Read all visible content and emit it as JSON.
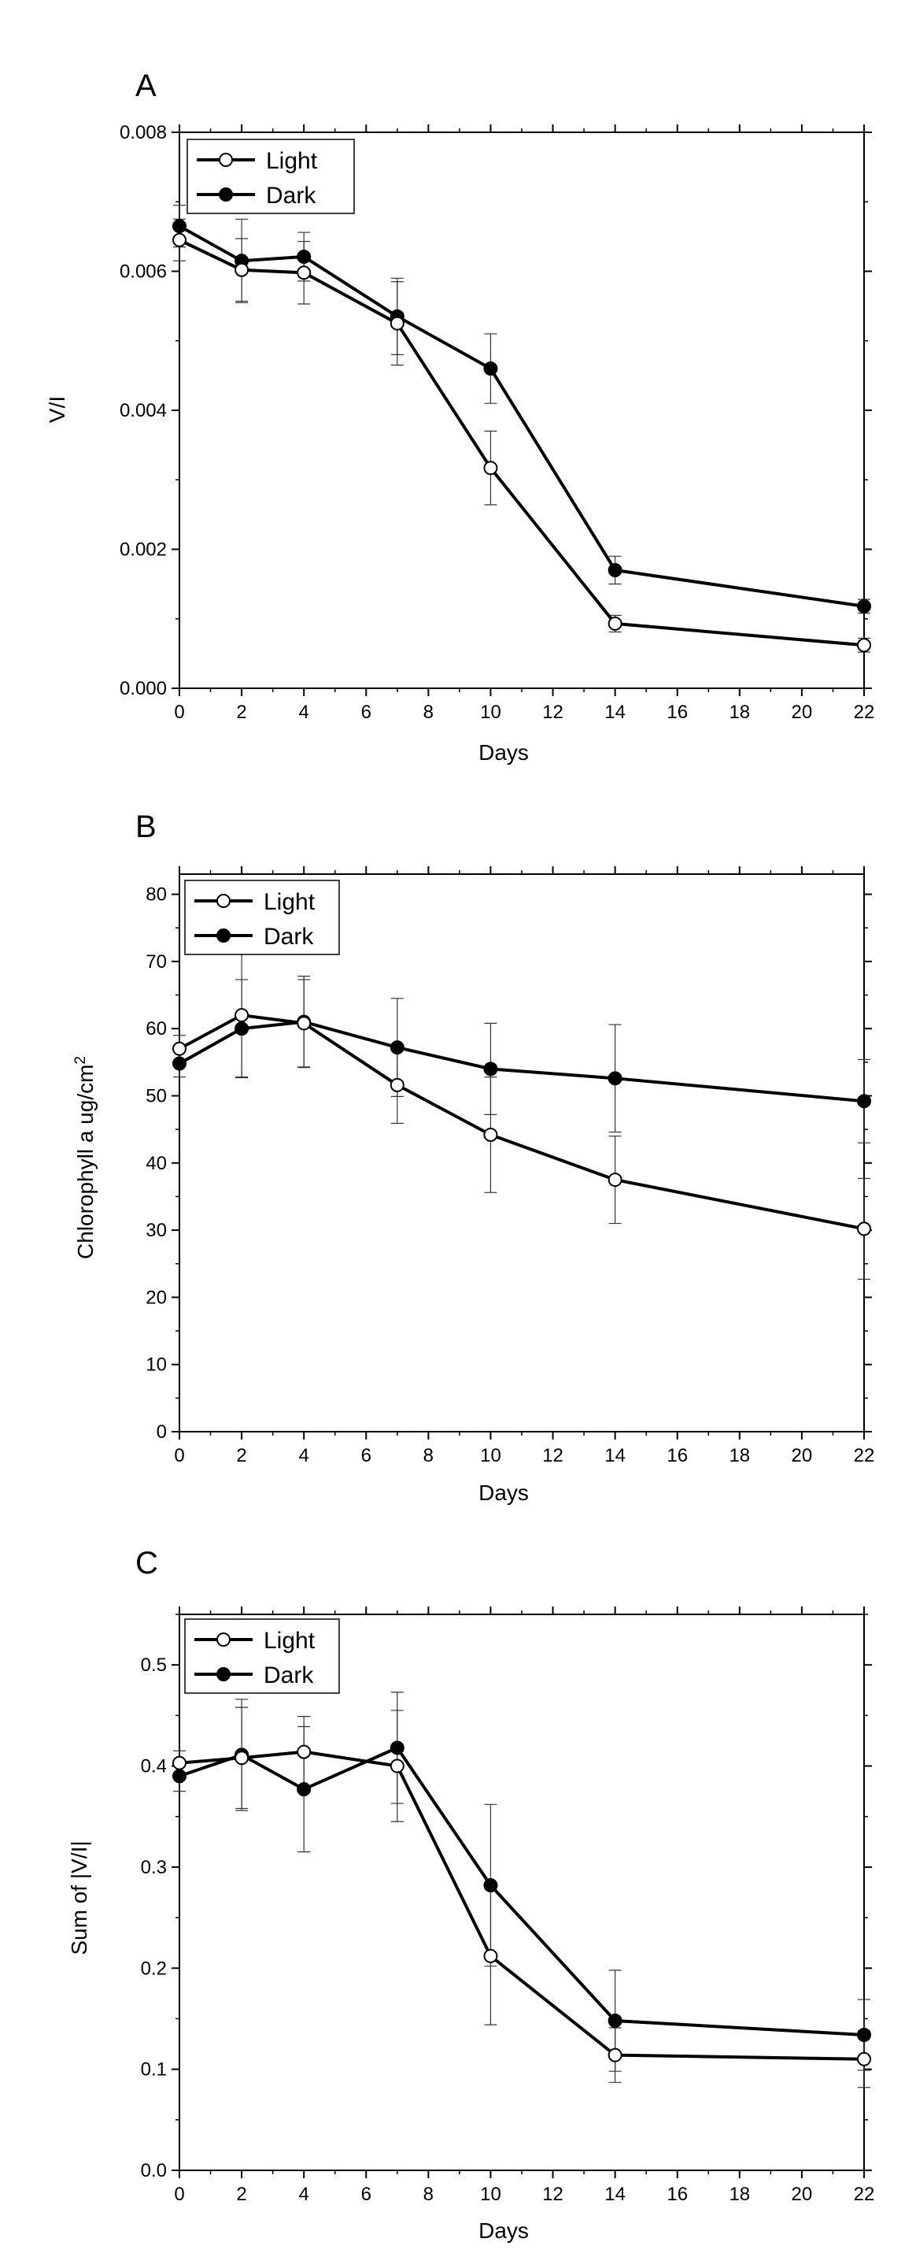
{
  "chart_data": [
    {
      "type": "line",
      "panel_label": "A",
      "xlabel": "Days",
      "ylabel": "V/I",
      "x": [
        0,
        2,
        4,
        7,
        10,
        14,
        22
      ],
      "xlim": [
        0,
        22
      ],
      "ylim": [
        0,
        0.008
      ],
      "xticks": [
        0,
        2,
        4,
        6,
        8,
        10,
        12,
        14,
        16,
        18,
        20,
        22
      ],
      "xtick_labels": [
        "0",
        "2",
        "4",
        "6",
        "8",
        "10",
        "12",
        "14",
        "16",
        "18",
        "20",
        "22"
      ],
      "yticks": [
        0,
        0.002,
        0.004,
        0.006,
        0.008
      ],
      "ytick_labels": [
        "0.000",
        "0.002",
        "0.004",
        "0.006",
        "0.008"
      ],
      "legend_position": "top-left",
      "grid": false,
      "series": [
        {
          "name": "Light",
          "marker": "open-circle",
          "values": [
            0.00645,
            0.00602,
            0.00598,
            0.00525,
            0.00317,
            0.00093,
            0.00062
          ],
          "errors": [
            0.0003,
            0.00045,
            0.00045,
            0.0006,
            0.00053,
            0.00012,
            0.0001
          ]
        },
        {
          "name": "Dark",
          "marker": "filled-circle",
          "values": [
            0.00665,
            0.00615,
            0.00621,
            0.00535,
            0.0046,
            0.0017,
            0.00118
          ],
          "errors": [
            0.0003,
            0.0006,
            0.00035,
            0.00055,
            0.0005,
            0.0002,
            0.0001
          ]
        }
      ]
    },
    {
      "type": "line",
      "panel_label": "B",
      "xlabel": "Days",
      "ylabel": "Chlorophyll a ug/cm",
      "ylabel_superscript": "2",
      "x": [
        0,
        2,
        4,
        7,
        10,
        14,
        22
      ],
      "xlim": [
        0,
        22
      ],
      "ylim": [
        0,
        83
      ],
      "xticks": [
        0,
        2,
        4,
        6,
        8,
        10,
        12,
        14,
        16,
        18,
        20,
        22
      ],
      "xtick_labels": [
        "0",
        "2",
        "4",
        "6",
        "8",
        "10",
        "12",
        "14",
        "16",
        "18",
        "20",
        "22"
      ],
      "yticks": [
        0,
        10,
        20,
        30,
        40,
        50,
        60,
        70,
        80
      ],
      "ytick_labels": [
        "0",
        "10",
        "20",
        "30",
        "40",
        "50",
        "60",
        "70",
        "80"
      ],
      "legend_position": "top-left",
      "grid": false,
      "series": [
        {
          "name": "Light",
          "marker": "open-circle",
          "values": [
            57.0,
            62.0,
            60.8,
            51.6,
            44.2,
            37.5,
            30.2
          ],
          "errors": [
            2.0,
            9.2,
            6.5,
            5.7,
            8.6,
            6.5,
            7.5
          ]
        },
        {
          "name": "Dark",
          "marker": "filled-circle",
          "values": [
            54.8,
            60.0,
            61.0,
            57.2,
            54.0,
            52.6,
            49.2
          ],
          "errors": [
            2.0,
            7.3,
            6.8,
            7.3,
            6.8,
            8.0,
            6.2
          ]
        }
      ]
    },
    {
      "type": "line",
      "panel_label": "C",
      "xlabel": "Days",
      "ylabel": "Sum of |V/I|",
      "x": [
        0,
        2,
        4,
        7,
        10,
        14,
        22
      ],
      "xlim": [
        0,
        22
      ],
      "ylim": [
        0,
        0.55
      ],
      "xticks": [
        0,
        2,
        4,
        6,
        8,
        10,
        12,
        14,
        16,
        18,
        20,
        22
      ],
      "xtick_labels": [
        "0",
        "2",
        "4",
        "6",
        "8",
        "10",
        "12",
        "14",
        "16",
        "18",
        "20",
        "22"
      ],
      "yticks": [
        0,
        0.1,
        0.2,
        0.3,
        0.4,
        0.5
      ],
      "ytick_labels": [
        "0.0",
        "0.1",
        "0.2",
        "0.3",
        "0.4",
        "0.5"
      ],
      "legend_position": "top-left",
      "grid": false,
      "series": [
        {
          "name": "Light",
          "marker": "open-circle",
          "values": [
            0.403,
            0.408,
            0.414,
            0.4,
            0.212,
            0.114,
            0.11
          ],
          "errors": [
            0.012,
            0.05,
            0.035,
            0.055,
            0.068,
            0.027,
            0.028
          ]
        },
        {
          "name": "Dark",
          "marker": "filled-circle",
          "values": [
            0.39,
            0.411,
            0.377,
            0.418,
            0.282,
            0.148,
            0.134
          ],
          "errors": [
            0.015,
            0.055,
            0.062,
            0.055,
            0.08,
            0.05,
            0.035
          ]
        }
      ]
    }
  ]
}
